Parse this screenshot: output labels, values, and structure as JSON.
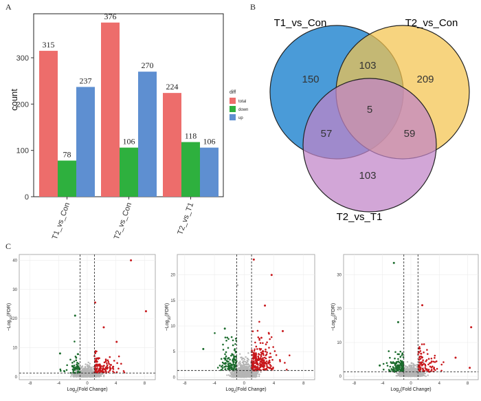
{
  "panels": {
    "a": "A",
    "b": "B",
    "c": "C"
  },
  "chart_data": [
    {
      "type": "bar",
      "ylabel": "count",
      "ylim": [
        0,
        395
      ],
      "yticks": [
        0,
        100,
        200,
        300
      ],
      "categories": [
        "T1_vs_Con",
        "T2_vs_Con",
        "T2_vs_T1"
      ],
      "legend_title": "diff",
      "series": [
        {
          "name": "total",
          "color": "#ED6D6B",
          "values": [
            315,
            376,
            224
          ]
        },
        {
          "name": "down",
          "color": "#2EB03E",
          "values": [
            78,
            106,
            118
          ]
        },
        {
          "name": "up",
          "color": "#5E8FD1",
          "values": [
            237,
            270,
            106
          ]
        }
      ]
    },
    {
      "type": "venn",
      "sets": [
        {
          "name": "T1_vs_Con",
          "color": "#4A9BD8"
        },
        {
          "name": "T2_vs_Con",
          "color": "#F4C34E"
        },
        {
          "name": "T2_vs_T1",
          "color": "#C083C7"
        }
      ],
      "regions": {
        "t1_only": 150,
        "t2con_only": 209,
        "t2t1_only": 103,
        "t1_t2con": 103,
        "t1_t2t1": 57,
        "t2con_t2t1": 59,
        "all": 5
      }
    },
    {
      "type": "scatter",
      "xlabel_main": "Log",
      "xlabel_sub": "2",
      "xlabel_rest": "(Fold Change)",
      "ylabel_main": "−Log",
      "ylabel_sub": "10",
      "ylabel_rest": "(FDR)",
      "xlim": [
        -9.5,
        9.5
      ],
      "ylim": [
        -1,
        42
      ],
      "xticks": [
        -8,
        -4,
        0,
        4,
        8
      ],
      "yticks": [
        0,
        10,
        20,
        30,
        40
      ],
      "fc_cutoff": 1,
      "fdr_line": 1.3,
      "colors": {
        "up": "#C8171B",
        "down": "#1A6B2C",
        "ns": "#B5B5B5"
      },
      "highlight_points": [
        [
          6.1,
          40
        ],
        [
          8.2,
          22.5
        ],
        [
          1.1,
          25.5
        ],
        [
          -1.7,
          21
        ],
        [
          2.3,
          17
        ],
        [
          4.1,
          12
        ],
        [
          -3.8,
          8
        ]
      ]
    },
    {
      "type": "scatter",
      "xlabel_main": "Log",
      "xlabel_sub": "2",
      "xlabel_rest": "(Fold Change)",
      "ylabel_main": "−Log",
      "ylabel_sub": "10",
      "ylabel_rest": "(FDR)",
      "xlim": [
        -9,
        9.5
      ],
      "ylim": [
        -0.5,
        24
      ],
      "xticks": [
        -8,
        -4,
        0,
        4,
        8
      ],
      "yticks": [
        0,
        5,
        10,
        15,
        20
      ],
      "fc_cutoff": 1,
      "fdr_line": 1.3,
      "colors": {
        "up": "#C8171B",
        "down": "#1A6B2C",
        "ns": "#B5B5B5"
      },
      "highlight_points": [
        [
          1.3,
          23
        ],
        [
          -0.9,
          18
        ],
        [
          3.7,
          20
        ],
        [
          -2.6,
          9.5
        ],
        [
          5.2,
          9
        ],
        [
          -5.5,
          5.5
        ],
        [
          2.8,
          14
        ]
      ]
    },
    {
      "type": "scatter",
      "xlabel_main": "Log",
      "xlabel_sub": "2",
      "xlabel_rest": "(Fold Change)",
      "ylabel_main": "−Log",
      "ylabel_sub": "10",
      "ylabel_rest": "(FDR)",
      "xlim": [
        -9.5,
        9.5
      ],
      "ylim": [
        -1,
        36
      ],
      "xticks": [
        -8,
        -4,
        0,
        4,
        8
      ],
      "yticks": [
        0,
        10,
        20,
        30
      ],
      "fc_cutoff": 1,
      "fdr_line": 1.3,
      "colors": {
        "up": "#C8171B",
        "down": "#1A6B2C",
        "ns": "#B5B5B5"
      },
      "highlight_points": [
        [
          -2.4,
          33.5
        ],
        [
          1.6,
          21
        ],
        [
          -1.8,
          16
        ],
        [
          8.5,
          14.5
        ],
        [
          6.3,
          5.5
        ],
        [
          -4.4,
          3.2
        ],
        [
          8.3,
          2.5
        ]
      ]
    }
  ]
}
